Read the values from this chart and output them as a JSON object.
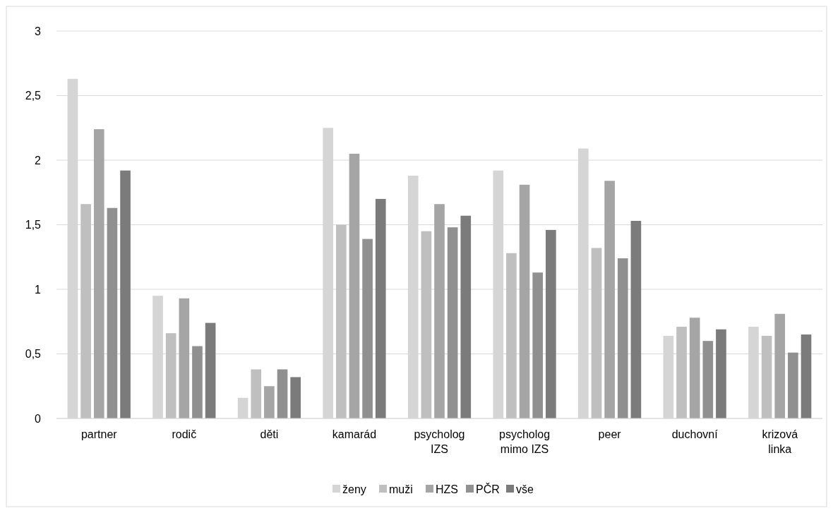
{
  "chart_data": {
    "type": "bar",
    "categories": [
      "partner",
      "rodič",
      "děti",
      "kamarád",
      "psycholog IZS",
      "psycholog mimo IZS",
      "peer",
      "duchovní",
      "krizová linka"
    ],
    "series": [
      {
        "name": "ženy",
        "color": "#d5d5d5",
        "values": [
          2.63,
          0.95,
          0.16,
          2.25,
          1.88,
          1.92,
          2.09,
          0.64,
          0.71
        ]
      },
      {
        "name": "muži",
        "color": "#bfbfbf",
        "values": [
          1.66,
          0.66,
          0.38,
          1.5,
          1.45,
          1.28,
          1.32,
          0.71,
          0.64
        ]
      },
      {
        "name": "HZS",
        "color": "#a5a5a5",
        "values": [
          2.24,
          0.93,
          0.25,
          2.05,
          1.66,
          1.81,
          1.84,
          0.78,
          0.81
        ]
      },
      {
        "name": "PČR",
        "color": "#909090",
        "values": [
          1.63,
          0.56,
          0.38,
          1.39,
          1.48,
          1.13,
          1.24,
          0.6,
          0.51
        ]
      },
      {
        "name": "vše",
        "color": "#7b7b7b",
        "values": [
          1.92,
          0.74,
          0.32,
          1.7,
          1.57,
          1.46,
          1.53,
          0.69,
          0.65
        ]
      }
    ],
    "ylim": [
      0,
      3
    ],
    "yticks": [
      0,
      {
        "value": 0.5,
        "label": "0,5"
      },
      1,
      {
        "value": 1.5,
        "label": "1,5"
      },
      2,
      {
        "value": 2.5,
        "label": "2,5"
      },
      3
    ],
    "grid": "y",
    "legend": "bottom"
  }
}
